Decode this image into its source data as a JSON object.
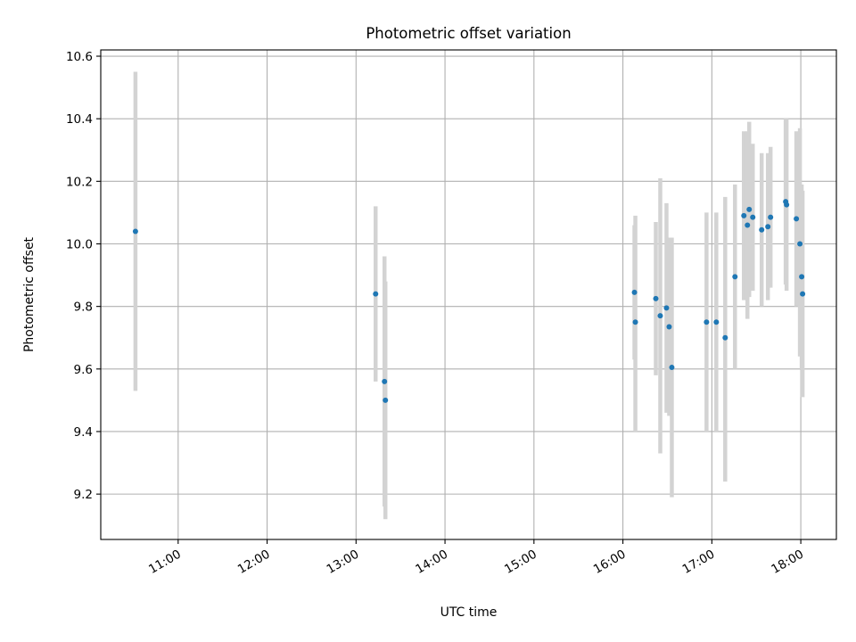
{
  "chart_data": {
    "type": "scatter",
    "title": "Photometric offset variation",
    "xlabel": "UTC time",
    "ylabel": "Photometric offset",
    "x_unit": "UTC hour of day",
    "xlim": [
      10.13,
      18.4
    ],
    "ylim": [
      9.055,
      10.62
    ],
    "grid": true,
    "x_ticks": [
      {
        "value": 11,
        "label": "11:00"
      },
      {
        "value": 12,
        "label": "12:00"
      },
      {
        "value": 13,
        "label": "13:00"
      },
      {
        "value": 14,
        "label": "14:00"
      },
      {
        "value": 15,
        "label": "15:00"
      },
      {
        "value": 16,
        "label": "16:00"
      },
      {
        "value": 17,
        "label": "17:00"
      },
      {
        "value": 18,
        "label": "18:00"
      }
    ],
    "y_ticks": [
      {
        "value": 9.2,
        "label": "9.2"
      },
      {
        "value": 9.4,
        "label": "9.4"
      },
      {
        "value": 9.6,
        "label": "9.6"
      },
      {
        "value": 9.8,
        "label": "9.8"
      },
      {
        "value": 10.0,
        "label": "10.0"
      },
      {
        "value": 10.2,
        "label": "10.2"
      },
      {
        "value": 10.4,
        "label": "10.4"
      },
      {
        "value": 10.6,
        "label": "10.6"
      }
    ],
    "colors": {
      "point": "#1f77b4",
      "errorbar": "#d3d3d3",
      "grid": "#b0b0b0"
    },
    "points": [
      {
        "x": 10.52,
        "y": 10.04,
        "ylow": 9.53,
        "yhigh": 10.55
      },
      {
        "x": 13.22,
        "y": 9.84,
        "ylow": 9.56,
        "yhigh": 10.12
      },
      {
        "x": 13.32,
        "y": 9.56,
        "ylow": 9.16,
        "yhigh": 9.96
      },
      {
        "x": 13.33,
        "y": 9.5,
        "ylow": 9.12,
        "yhigh": 9.88
      },
      {
        "x": 16.13,
        "y": 9.845,
        "ylow": 9.63,
        "yhigh": 10.06
      },
      {
        "x": 16.14,
        "y": 9.75,
        "ylow": 9.4,
        "yhigh": 10.09
      },
      {
        "x": 16.37,
        "y": 9.825,
        "ylow": 9.58,
        "yhigh": 10.07
      },
      {
        "x": 16.42,
        "y": 9.77,
        "ylow": 9.33,
        "yhigh": 10.21
      },
      {
        "x": 16.49,
        "y": 9.795,
        "ylow": 9.46,
        "yhigh": 10.13
      },
      {
        "x": 16.52,
        "y": 9.735,
        "ylow": 9.45,
        "yhigh": 10.02
      },
      {
        "x": 16.55,
        "y": 9.605,
        "ylow": 9.19,
        "yhigh": 10.02
      },
      {
        "x": 16.94,
        "y": 9.75,
        "ylow": 9.4,
        "yhigh": 10.1
      },
      {
        "x": 17.05,
        "y": 9.75,
        "ylow": 9.4,
        "yhigh": 10.1
      },
      {
        "x": 17.15,
        "y": 9.7,
        "ylow": 9.24,
        "yhigh": 10.15
      },
      {
        "x": 17.26,
        "y": 9.895,
        "ylow": 9.6,
        "yhigh": 10.19
      },
      {
        "x": 17.36,
        "y": 10.09,
        "ylow": 9.82,
        "yhigh": 10.36
      },
      {
        "x": 17.4,
        "y": 10.06,
        "ylow": 9.76,
        "yhigh": 10.36
      },
      {
        "x": 17.42,
        "y": 10.11,
        "ylow": 9.83,
        "yhigh": 10.39
      },
      {
        "x": 17.46,
        "y": 10.085,
        "ylow": 9.85,
        "yhigh": 10.32
      },
      {
        "x": 17.56,
        "y": 10.045,
        "ylow": 9.8,
        "yhigh": 10.29
      },
      {
        "x": 17.63,
        "y": 10.055,
        "ylow": 9.82,
        "yhigh": 10.29
      },
      {
        "x": 17.66,
        "y": 10.085,
        "ylow": 9.86,
        "yhigh": 10.31
      },
      {
        "x": 17.83,
        "y": 10.135,
        "ylow": 9.87,
        "yhigh": 10.4
      },
      {
        "x": 17.84,
        "y": 10.125,
        "ylow": 9.85,
        "yhigh": 10.4
      },
      {
        "x": 17.95,
        "y": 10.08,
        "ylow": 9.8,
        "yhigh": 10.36
      },
      {
        "x": 17.99,
        "y": 10.0,
        "ylow": 9.64,
        "yhigh": 10.37
      },
      {
        "x": 18.01,
        "y": 9.895,
        "ylow": 9.6,
        "yhigh": 10.19
      },
      {
        "x": 18.02,
        "y": 9.84,
        "ylow": 9.51,
        "yhigh": 10.17
      }
    ]
  }
}
